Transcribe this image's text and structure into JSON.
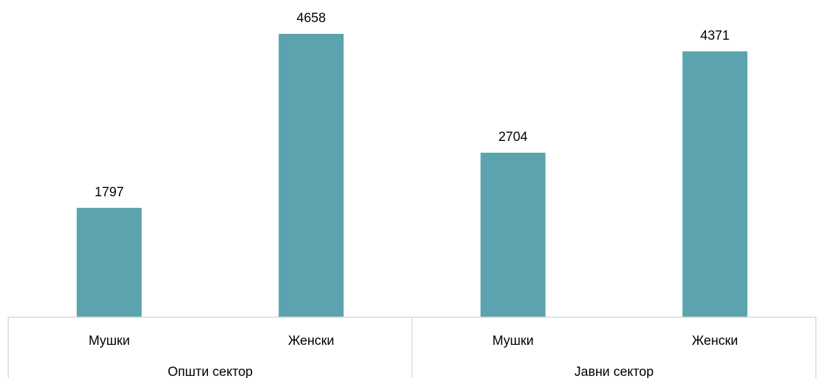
{
  "chart_data": {
    "type": "bar",
    "title": "",
    "xlabel": "",
    "ylabel": "",
    "ylim": [
      0,
      4658
    ],
    "grid": false,
    "legend": "none",
    "bar_color": "#5BA3AF",
    "axis_color": "#D9D9D9",
    "groups": [
      {
        "label": "Општи сектор",
        "categories": [
          "Мушки",
          "Женски"
        ],
        "values": [
          1797,
          4658
        ]
      },
      {
        "label": "Јавни сектор",
        "categories": [
          "Мушки",
          "Женски"
        ],
        "values": [
          2704,
          4371
        ]
      }
    ]
  }
}
